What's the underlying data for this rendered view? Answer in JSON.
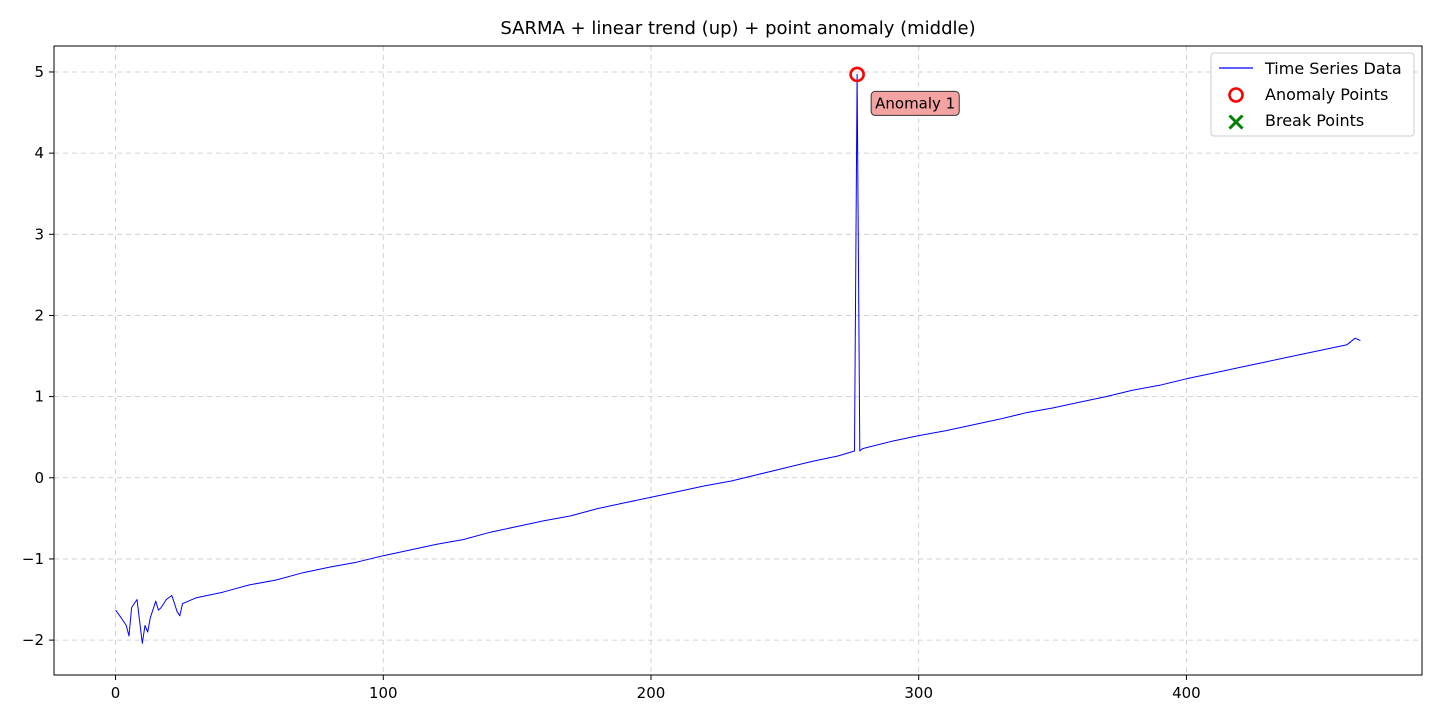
{
  "chart_data": {
    "type": "line",
    "title": "SARMA + linear trend (up) + point anomaly (middle)",
    "xlabel": "",
    "ylabel": "",
    "xlim": [
      -23,
      488
    ],
    "ylim": [
      -2.43,
      5.32
    ],
    "xticks": [
      0,
      100,
      200,
      300,
      400
    ],
    "xtick_labels": [
      "0",
      "100",
      "200",
      "300",
      "400"
    ],
    "yticks": [
      -2,
      -1,
      0,
      1,
      2,
      3,
      4,
      5
    ],
    "ytick_labels": [
      "−2",
      "−1",
      "0",
      "1",
      "2",
      "3",
      "4",
      "5"
    ],
    "grid": true,
    "legend_position": "top-right",
    "series": [
      {
        "name": "Time Series Data",
        "color": "#0000ff",
        "x": [
          0,
          2,
          4,
          5,
          6,
          8,
          10,
          11,
          12,
          13,
          14,
          15,
          16,
          17,
          19,
          21,
          22,
          23,
          24,
          25,
          30,
          40,
          50,
          60,
          70,
          80,
          90,
          100,
          110,
          120,
          130,
          140,
          150,
          160,
          170,
          180,
          190,
          200,
          210,
          220,
          230,
          240,
          250,
          260,
          270,
          276,
          277,
          278,
          279,
          290,
          300,
          310,
          320,
          330,
          340,
          350,
          360,
          370,
          380,
          390,
          400,
          410,
          420,
          430,
          440,
          450,
          460,
          463,
          465
        ],
        "y": [
          -1.63,
          -1.72,
          -1.82,
          -1.95,
          -1.6,
          -1.5,
          -2.04,
          -1.82,
          -1.9,
          -1.72,
          -1.62,
          -1.52,
          -1.63,
          -1.6,
          -1.5,
          -1.45,
          -1.55,
          -1.65,
          -1.7,
          -1.55,
          -1.48,
          -1.41,
          -1.32,
          -1.26,
          -1.17,
          -1.1,
          -1.04,
          -0.96,
          -0.89,
          -0.82,
          -0.76,
          -0.67,
          -0.6,
          -0.53,
          -0.47,
          -0.38,
          -0.31,
          -0.24,
          -0.17,
          -0.1,
          -0.04,
          0.04,
          0.12,
          0.2,
          0.27,
          0.33,
          4.97,
          0.33,
          0.36,
          0.45,
          0.52,
          0.58,
          0.65,
          0.72,
          0.8,
          0.86,
          0.93,
          1.0,
          1.08,
          1.14,
          1.22,
          1.29,
          1.36,
          1.43,
          1.5,
          1.57,
          1.64,
          1.72,
          1.69
        ]
      }
    ],
    "anomaly_points": [
      {
        "x": 277,
        "y": 4.97,
        "label": "Anomaly 1"
      }
    ],
    "break_points": [],
    "legend": {
      "entries": [
        {
          "label": "Time Series Data",
          "marker": "line",
          "color": "#0000ff"
        },
        {
          "label": "Anomaly Points",
          "marker": "circle",
          "color": "#ff0000"
        },
        {
          "label": "Break Points",
          "marker": "x",
          "color": "#008000"
        }
      ]
    },
    "annotation_style": {
      "fill": "#f4a3a3",
      "edge": "#333333"
    }
  }
}
